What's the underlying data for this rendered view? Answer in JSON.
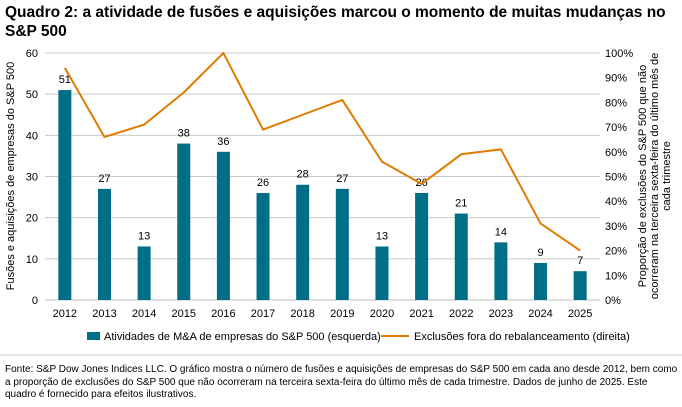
{
  "title": "Quadro 2: a atividade de fusões e aquisições marcou o momento de muitas mudanças no S&P 500",
  "chart_data": {
    "type": "bar+line",
    "categories": [
      "2012",
      "2013",
      "2014",
      "2015",
      "2016",
      "2017",
      "2018",
      "2019",
      "2020",
      "2021",
      "2022",
      "2023",
      "2024",
      "2025"
    ],
    "series": [
      {
        "name": "Atividades de M&A de empresas do S&P 500 (esquerda)",
        "type": "bar",
        "axis": "left",
        "color": "#006E87",
        "values": [
          51,
          27,
          13,
          38,
          36,
          26,
          28,
          27,
          13,
          26,
          21,
          14,
          9,
          7
        ]
      },
      {
        "name": "Exclusões fora do rebalanceamento (direita)",
        "type": "line",
        "axis": "right",
        "color": "#E07B00",
        "values": [
          94,
          66,
          71,
          84,
          100,
          69,
          75,
          81,
          56,
          47,
          59,
          61,
          31,
          20
        ]
      }
    ],
    "ylabel": "Fusões e aquisições de empresas do S&P 500",
    "y2label": [
      "Proporção de exclusões do S&P 500 que não",
      "ocorreram na terceira sexta-feira do último mês de",
      "cada trimestre"
    ],
    "ylim": [
      0,
      60
    ],
    "yticks": [
      "0",
      "10",
      "20",
      "30",
      "40",
      "50",
      "60"
    ],
    "y2lim": [
      0,
      100
    ],
    "y2ticks": [
      "0%",
      "10%",
      "20%",
      "30%",
      "40%",
      "50%",
      "60%",
      "70%",
      "80%",
      "90%",
      "100%"
    ],
    "grid": true,
    "legend": "bottom"
  },
  "note": "Fonte: S&P Dow Jones Indices LLC. O gráfico mostra o número de fusões e aquisições de empresas do S&P 500 em cada ano desde 2012, bem como a proporção de exclusões do S&P 500 que não ocorreram na terceira sexta-feira do último mês de cada trimestre. Dados de junho de 2025. Este quadro é fornecido para efeitos ilustrativos."
}
